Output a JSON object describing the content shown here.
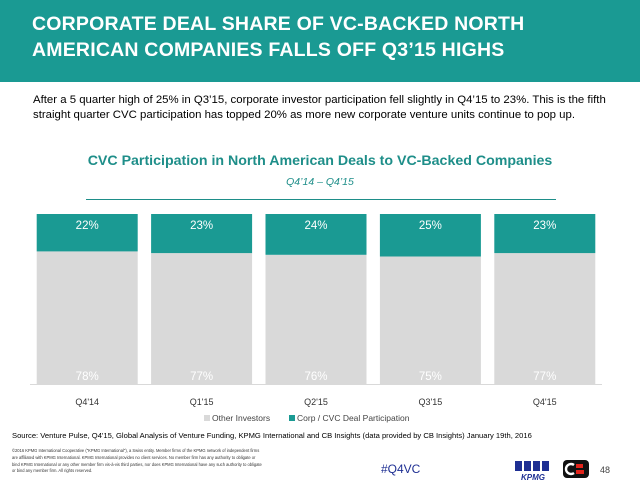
{
  "header": {
    "title": "CORPORATE DEAL SHARE OF VC-BACKED NORTH AMERICAN COMPANIES FALLS OFF Q3’15 HIGHS"
  },
  "intro": "After a 5 quarter high of 25% in Q3’15, corporate investor participation fell slightly in Q4’15 to 23%. This is the fifth straight quarter CVC participation has topped 20% as more new corporate venture units continue to pop up.",
  "chart_data": {
    "type": "bar",
    "stacked": true,
    "normalized": true,
    "title": "CVC Participation in North American Deals to VC-Backed Companies",
    "subtitle": "Q4’14 – Q4’15",
    "categories": [
      "Q4'14",
      "Q1'15",
      "Q2'15",
      "Q3'15",
      "Q4'15"
    ],
    "series": [
      {
        "name": "Other Investors",
        "values": [
          78,
          77,
          76,
          75,
          77
        ],
        "labels": [
          "78%",
          "77%",
          "76%",
          "75%",
          "77%"
        ],
        "color": "#d9d9d9"
      },
      {
        "name": "Corp / CVC Deal Participation",
        "values": [
          22,
          23,
          24,
          25,
          23
        ],
        "labels": [
          "22%",
          "23%",
          "24%",
          "25%",
          "23%"
        ],
        "color": "#1a9a93"
      }
    ],
    "ylim": [
      0,
      100
    ],
    "legend": "bottom",
    "grid": false
  },
  "footer": {
    "source": "Source: Venture Pulse, Q4'15, Global Analysis of Venture Funding, KPMG International and CB Insights (data provided by CB Insights) January 19th, 2016",
    "copyright": "©2016 KPMG International Cooperative (\"KPMG International\"), a Swiss entity. Member firms of the KPMG network of independent firms are affiliated with KPMG International. KPMG International provides no client services. No member firm has any authority to obligate or bind KPMG International or any other member firm vis-à-vis third parties, nor does KPMG International have any such authority to obligate or bind any member firm. All rights reserved.",
    "hashtag": "#Q4VC",
    "page_number": "48",
    "logo_text": "KPMG"
  },
  "colors": {
    "header_bg": "#1a9a93",
    "accent": "#1e8e89",
    "kpmg_blue": "#1e2f93"
  }
}
